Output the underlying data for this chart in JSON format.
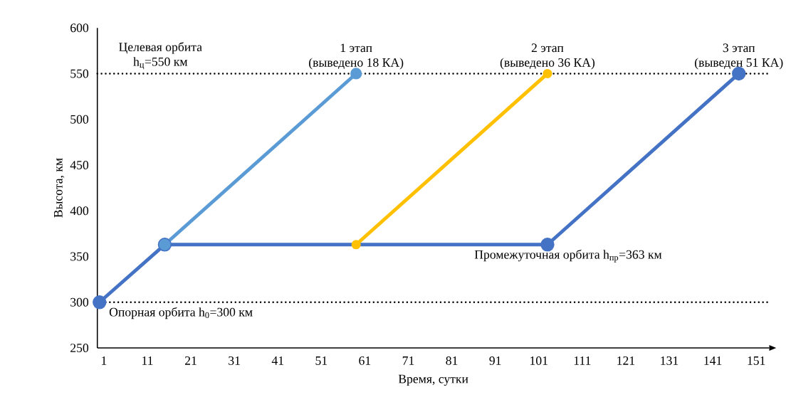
{
  "chart_data": {
    "type": "line",
    "xlabel": "Время, сутки",
    "ylabel": "Высота, км",
    "xlim": [
      -0.5,
      154
    ],
    "ylim": [
      250,
      600
    ],
    "xticks": [
      1,
      11,
      21,
      31,
      41,
      51,
      61,
      71,
      81,
      91,
      101,
      111,
      121,
      131,
      141,
      151
    ],
    "yticks": [
      250,
      300,
      350,
      400,
      450,
      500,
      550,
      600
    ],
    "marker": "circle",
    "line_style": "solid",
    "series": [
      {
        "color": "#4472c4",
        "x": [
          0,
          15,
          103,
          147
        ],
        "values": [
          300,
          363,
          363,
          550
        ]
      },
      {
        "color": "#5b9bd5",
        "x": [
          15,
          59
        ],
        "values": [
          363,
          550
        ]
      },
      {
        "color": "#ffc000",
        "x": [
          59,
          103
        ],
        "values": [
          363,
          550
        ]
      }
    ],
    "ref_lines": [
      {
        "axis": "y",
        "value": 550,
        "color": "#000000",
        "line_style": "dotted"
      },
      {
        "axis": "y",
        "value": 300,
        "color": "#000000",
        "line_style": "dotted"
      }
    ],
    "annotations": [
      {
        "text": "Целевая орбита",
        "x": 14,
        "y": 550
      },
      {
        "text": "h$_{ц}$=550 км",
        "x": 14,
        "y": 550
      },
      {
        "text": "1 этап",
        "x": 59,
        "y": 550
      },
      {
        "text": "(выведено 18 КА)",
        "x": 59,
        "y": 550
      },
      {
        "text": "2 этап",
        "x": 103,
        "y": 550
      },
      {
        "text": "(выведено 36 КА)",
        "x": 103,
        "y": 550
      },
      {
        "text": "3 этап",
        "x": 147,
        "y": 550
      },
      {
        "text": "(выведен 51 КА)",
        "x": 147,
        "y": 550
      },
      {
        "text": "Промежуточная орбита h$_{пр}$=363 км",
        "x": 86,
        "y": 363
      },
      {
        "text": "Опорная орбита h$_{0}$=300 км",
        "x": 2,
        "y": 300
      }
    ]
  }
}
